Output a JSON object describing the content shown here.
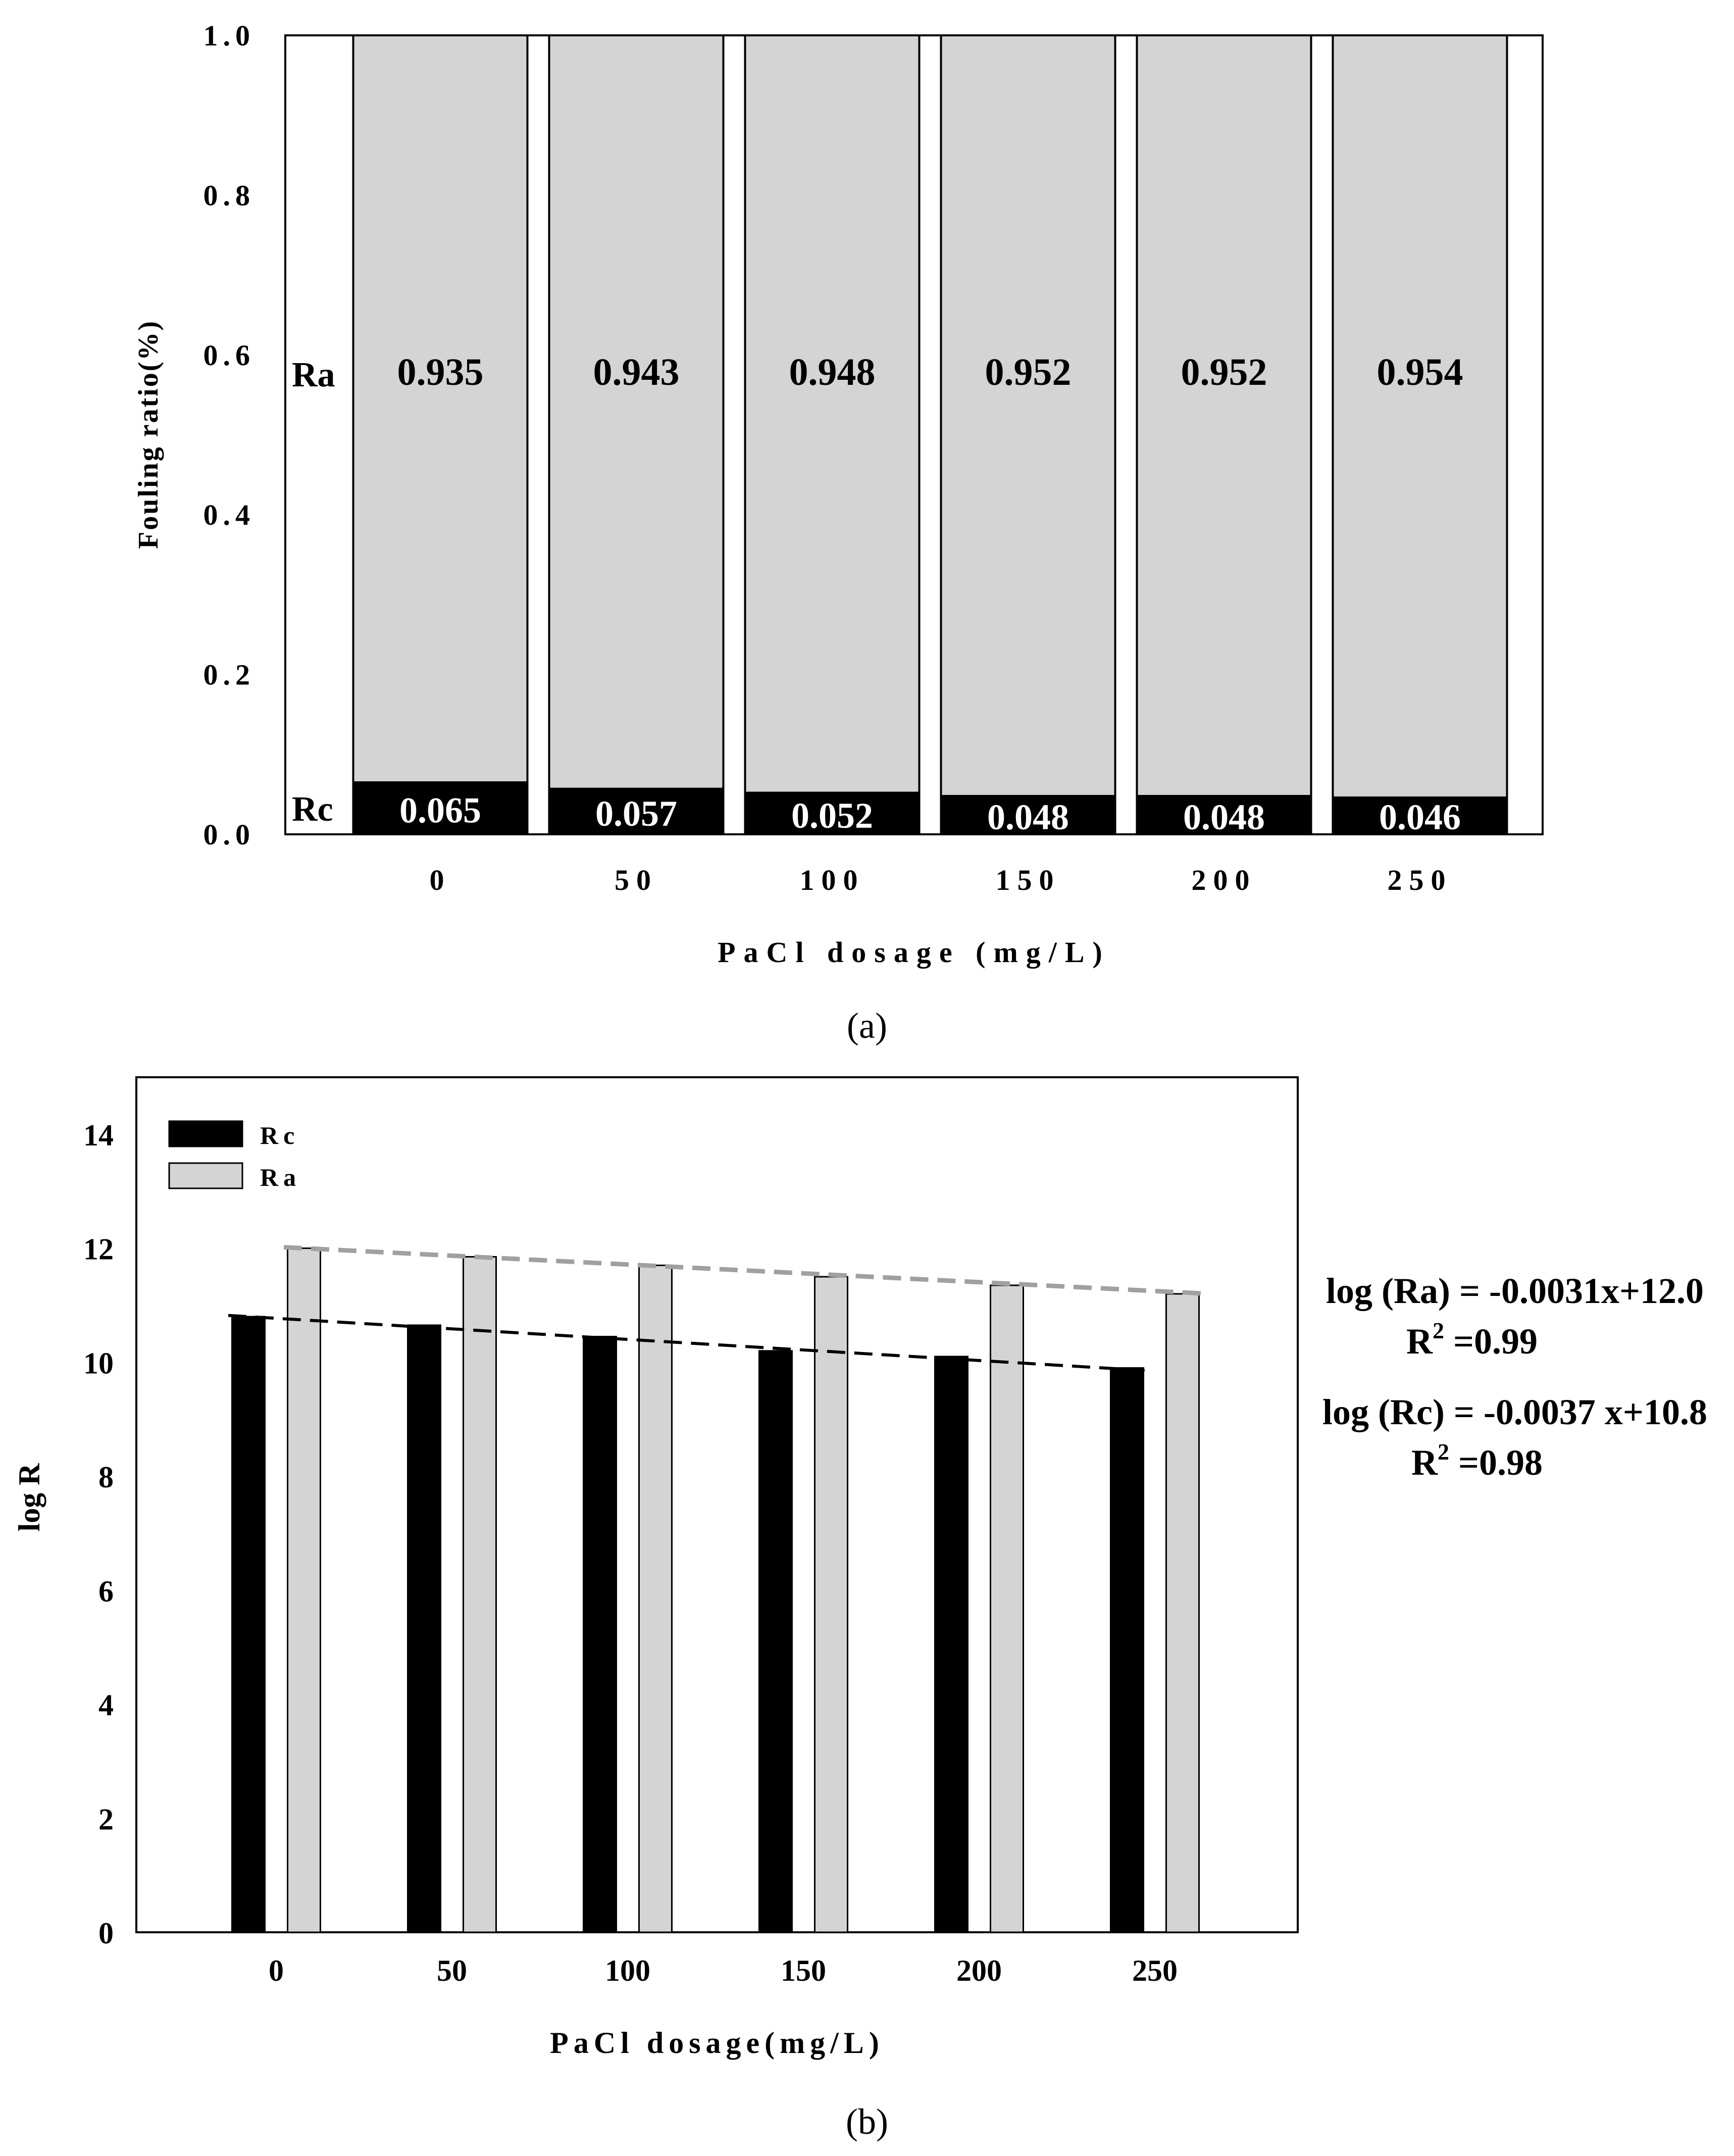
{
  "chart_data": [
    {
      "type": "bar",
      "stacked": true,
      "panel_label": "(a)",
      "xlabel": "PaCl dosage (mg/L)",
      "ylabel": "Fouling ratio(%)",
      "ylim": [
        0,
        1.0
      ],
      "yticks": [
        "0.0",
        "0.2",
        "0.4",
        "0.6",
        "0.8",
        "1.0"
      ],
      "categories": [
        "0",
        "50",
        "100",
        "150",
        "200",
        "250"
      ],
      "series": [
        {
          "name": "Rc",
          "color": "#000000",
          "label_color": "#ffffff",
          "values": [
            0.065,
            0.057,
            0.052,
            0.048,
            0.048,
            0.046
          ],
          "labels": [
            "0.065",
            "0.057",
            "0.052",
            "0.048",
            "0.048",
            "0.046"
          ]
        },
        {
          "name": "Ra",
          "color": "#d4d4d4",
          "label_color": "#000000",
          "values": [
            0.935,
            0.943,
            0.948,
            0.952,
            0.952,
            0.954
          ],
          "labels": [
            "0.935",
            "0.943",
            "0.948",
            "0.952",
            "0.952",
            "0.954"
          ]
        }
      ],
      "series_side_labels": [
        "Ra",
        "Rc"
      ],
      "grid": false
    },
    {
      "type": "bar",
      "panel_label": "(b)",
      "xlabel": "PaCl dosage(mg/L)",
      "ylabel": "log R",
      "ylim": [
        0,
        15
      ],
      "yticks": [
        "0",
        "2",
        "4",
        "6",
        "8",
        "10",
        "12",
        "14"
      ],
      "categories": [
        "0",
        "50",
        "100",
        "150",
        "200",
        "250"
      ],
      "x_values": [
        0,
        50,
        100,
        150,
        200,
        250
      ],
      "legend_position": "top-left",
      "series": [
        {
          "name": "Rc",
          "color": "#000000",
          "values": [
            10.8,
            10.65,
            10.45,
            10.2,
            10.1,
            9.9
          ]
        },
        {
          "name": "Ra",
          "color": "#d4d4d4",
          "values": [
            12.0,
            11.85,
            11.7,
            11.5,
            11.35,
            11.2
          ]
        }
      ],
      "trendlines": [
        {
          "series": "Ra",
          "slope": -0.0031,
          "intercept": 12.0,
          "color": "#a0a0a0",
          "equation": "log (Ra) = -0.0031x+12.0",
          "r2": "=0.99"
        },
        {
          "series": "Rc",
          "slope": -0.0037,
          "intercept": 10.8,
          "color": "#000000",
          "equation": "log (Rc) = -0.0037 x+10.8",
          "r2": "=0.98"
        }
      ],
      "grid": false
    }
  ]
}
